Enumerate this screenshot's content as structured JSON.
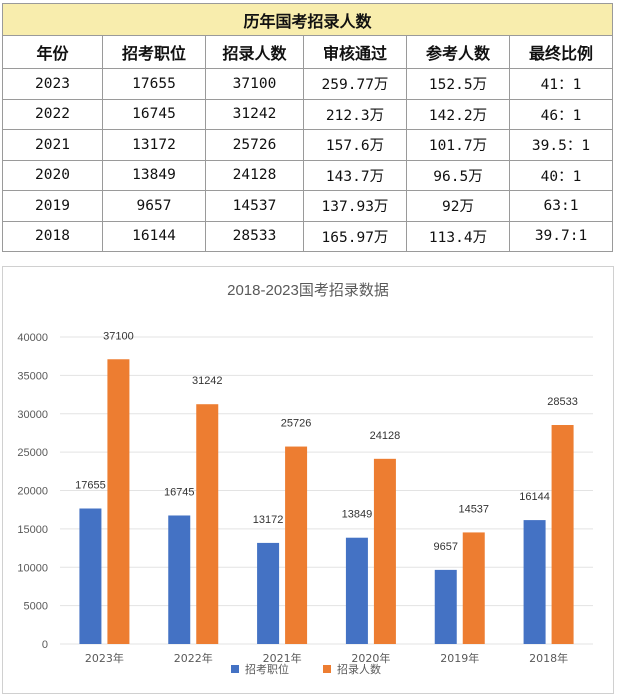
{
  "table": {
    "title": "历年国考招录人数",
    "headers": [
      "年份",
      "招考职位",
      "招录人数",
      "审核通过",
      "参考人数",
      "最终比例"
    ],
    "rows": [
      [
        "2023",
        "17655",
        "37100",
        "259.77万",
        "152.5万",
        "41：1"
      ],
      [
        "2022",
        "16745",
        "31242",
        "212.3万",
        "142.2万",
        "46：1"
      ],
      [
        "2021",
        "13172",
        "25726",
        "157.6万",
        "101.7万",
        "39.5：1"
      ],
      [
        "2020",
        "13849",
        "24128",
        "143.7万",
        "96.5万",
        "40：1"
      ],
      [
        "2019",
        "9657",
        "14537",
        "137.93万",
        "92万",
        "63:1"
      ],
      [
        "2018",
        "16144",
        "28533",
        "165.97万",
        "113.4万",
        "39.7:1"
      ]
    ]
  },
  "chart_data": {
    "type": "bar",
    "title": "2018-2023国考招录数据",
    "categories": [
      "2023年",
      "2022年",
      "2021年",
      "2020年",
      "2019年",
      "2018年"
    ],
    "series": [
      {
        "name": "招考职位",
        "color": "#4472c4",
        "values": [
          17655,
          16745,
          13172,
          13849,
          9657,
          16144
        ]
      },
      {
        "name": "招录人数",
        "color": "#ed7d31",
        "values": [
          37100,
          31242,
          25726,
          24128,
          14537,
          28533
        ]
      }
    ],
    "ylim": [
      0,
      40000
    ],
    "yticks": [
      0,
      5000,
      10000,
      15000,
      20000,
      25000,
      30000,
      35000,
      40000
    ],
    "grid": true,
    "legend_position": "bottom",
    "xlabel": "",
    "ylabel": ""
  }
}
